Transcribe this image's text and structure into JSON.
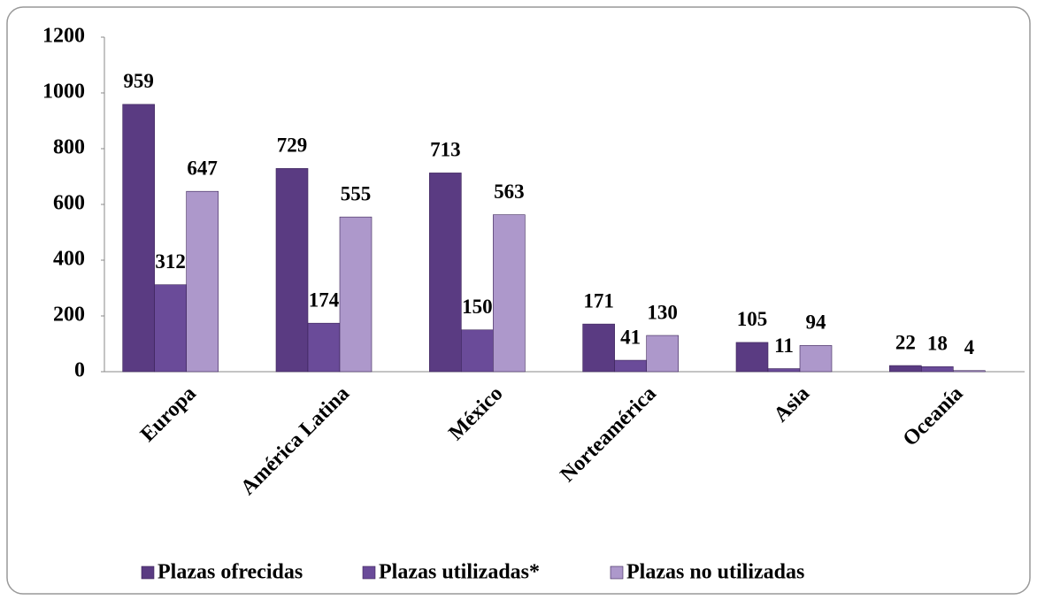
{
  "chart_data": {
    "type": "bar",
    "categories": [
      "Europa",
      "América Latina",
      "México",
      "Norteamérica",
      "Asia",
      "Oceanía"
    ],
    "series": [
      {
        "name": "Plazas ofrecidas",
        "color": "#5a3b82",
        "values": [
          959,
          729,
          713,
          171,
          105,
          22
        ]
      },
      {
        "name": "Plazas utilizadas*",
        "color": "#6a4b99",
        "values": [
          312,
          174,
          150,
          41,
          11,
          18
        ]
      },
      {
        "name": "Plazas no utilizadas",
        "color": "#ad98cb",
        "values": [
          647,
          555,
          563,
          130,
          94,
          4
        ]
      }
    ],
    "ylim": [
      0,
      1200
    ],
    "yticks": [
      0,
      200,
      400,
      600,
      800,
      1000,
      1200
    ],
    "grid": false,
    "legend": "bottom"
  }
}
